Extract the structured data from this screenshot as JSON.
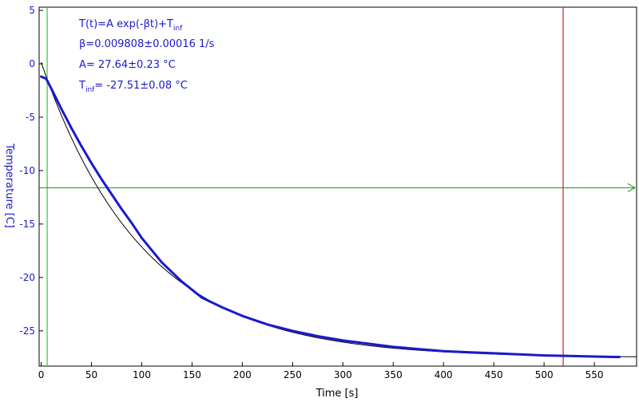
{
  "chart_data": {
    "type": "line",
    "xlabel": "Time [s]",
    "ylabel": "Temperature [C]",
    "xlim": [
      -2,
      592
    ],
    "ylim": [
      -28.3,
      5.3
    ],
    "x_ticks": [
      0,
      50,
      100,
      150,
      200,
      250,
      300,
      350,
      400,
      450,
      500,
      550
    ],
    "y_ticks": [
      5,
      0,
      -5,
      -10,
      -15,
      -20,
      -25
    ],
    "grid": false,
    "colors": {
      "data": "#1a1acc",
      "fit": "#000000",
      "vertical_marker_start": "#33cc33",
      "vertical_marker_end": "#cc2222",
      "horizontal_marker": "#1a8a1a",
      "axis_text": "#1a1acc"
    },
    "fit": {
      "A": 27.64,
      "A_err": 0.23,
      "beta": 0.009808,
      "beta_err": 0.00016,
      "T_inf": -27.51,
      "T_inf_err": 0.08,
      "x_range": [
        0,
        592
      ]
    },
    "annotations": {
      "model_lhs": "T(t)=A exp(-βt)+T",
      "model_sub": "inf",
      "beta_text": "β=0.009808±0.00016 1/s",
      "A_text": "A= 27.64±0.23 °C",
      "tinf_main": "T",
      "tinf_sub": "inf",
      "tinf_rest": "= -27.51±0.08 °C"
    },
    "markers": {
      "vertical_start_x": 6,
      "vertical_end_x": 519,
      "horizontal_y": -11.6
    },
    "series": [
      {
        "x": [
          0,
          5,
          10,
          20,
          30,
          40,
          50,
          60,
          70,
          80,
          90,
          100,
          120,
          140,
          160,
          180,
          200,
          225,
          250,
          275,
          300,
          325,
          350,
          375,
          400,
          425,
          450,
          475,
          500,
          525,
          550,
          575
        ],
        "values": [
          -1.2,
          -1.4,
          -2.3,
          -4.2,
          -6.0,
          -7.7,
          -9.3,
          -10.8,
          -12.2,
          -13.6,
          -14.9,
          -16.3,
          -18.6,
          -20.4,
          -21.9,
          -22.8,
          -23.6,
          -24.4,
          -25.0,
          -25.5,
          -25.9,
          -26.2,
          -26.5,
          -26.7,
          -26.9,
          -27.0,
          -27.1,
          -27.2,
          -27.3,
          -27.35,
          -27.4,
          -27.45
        ]
      }
    ]
  }
}
